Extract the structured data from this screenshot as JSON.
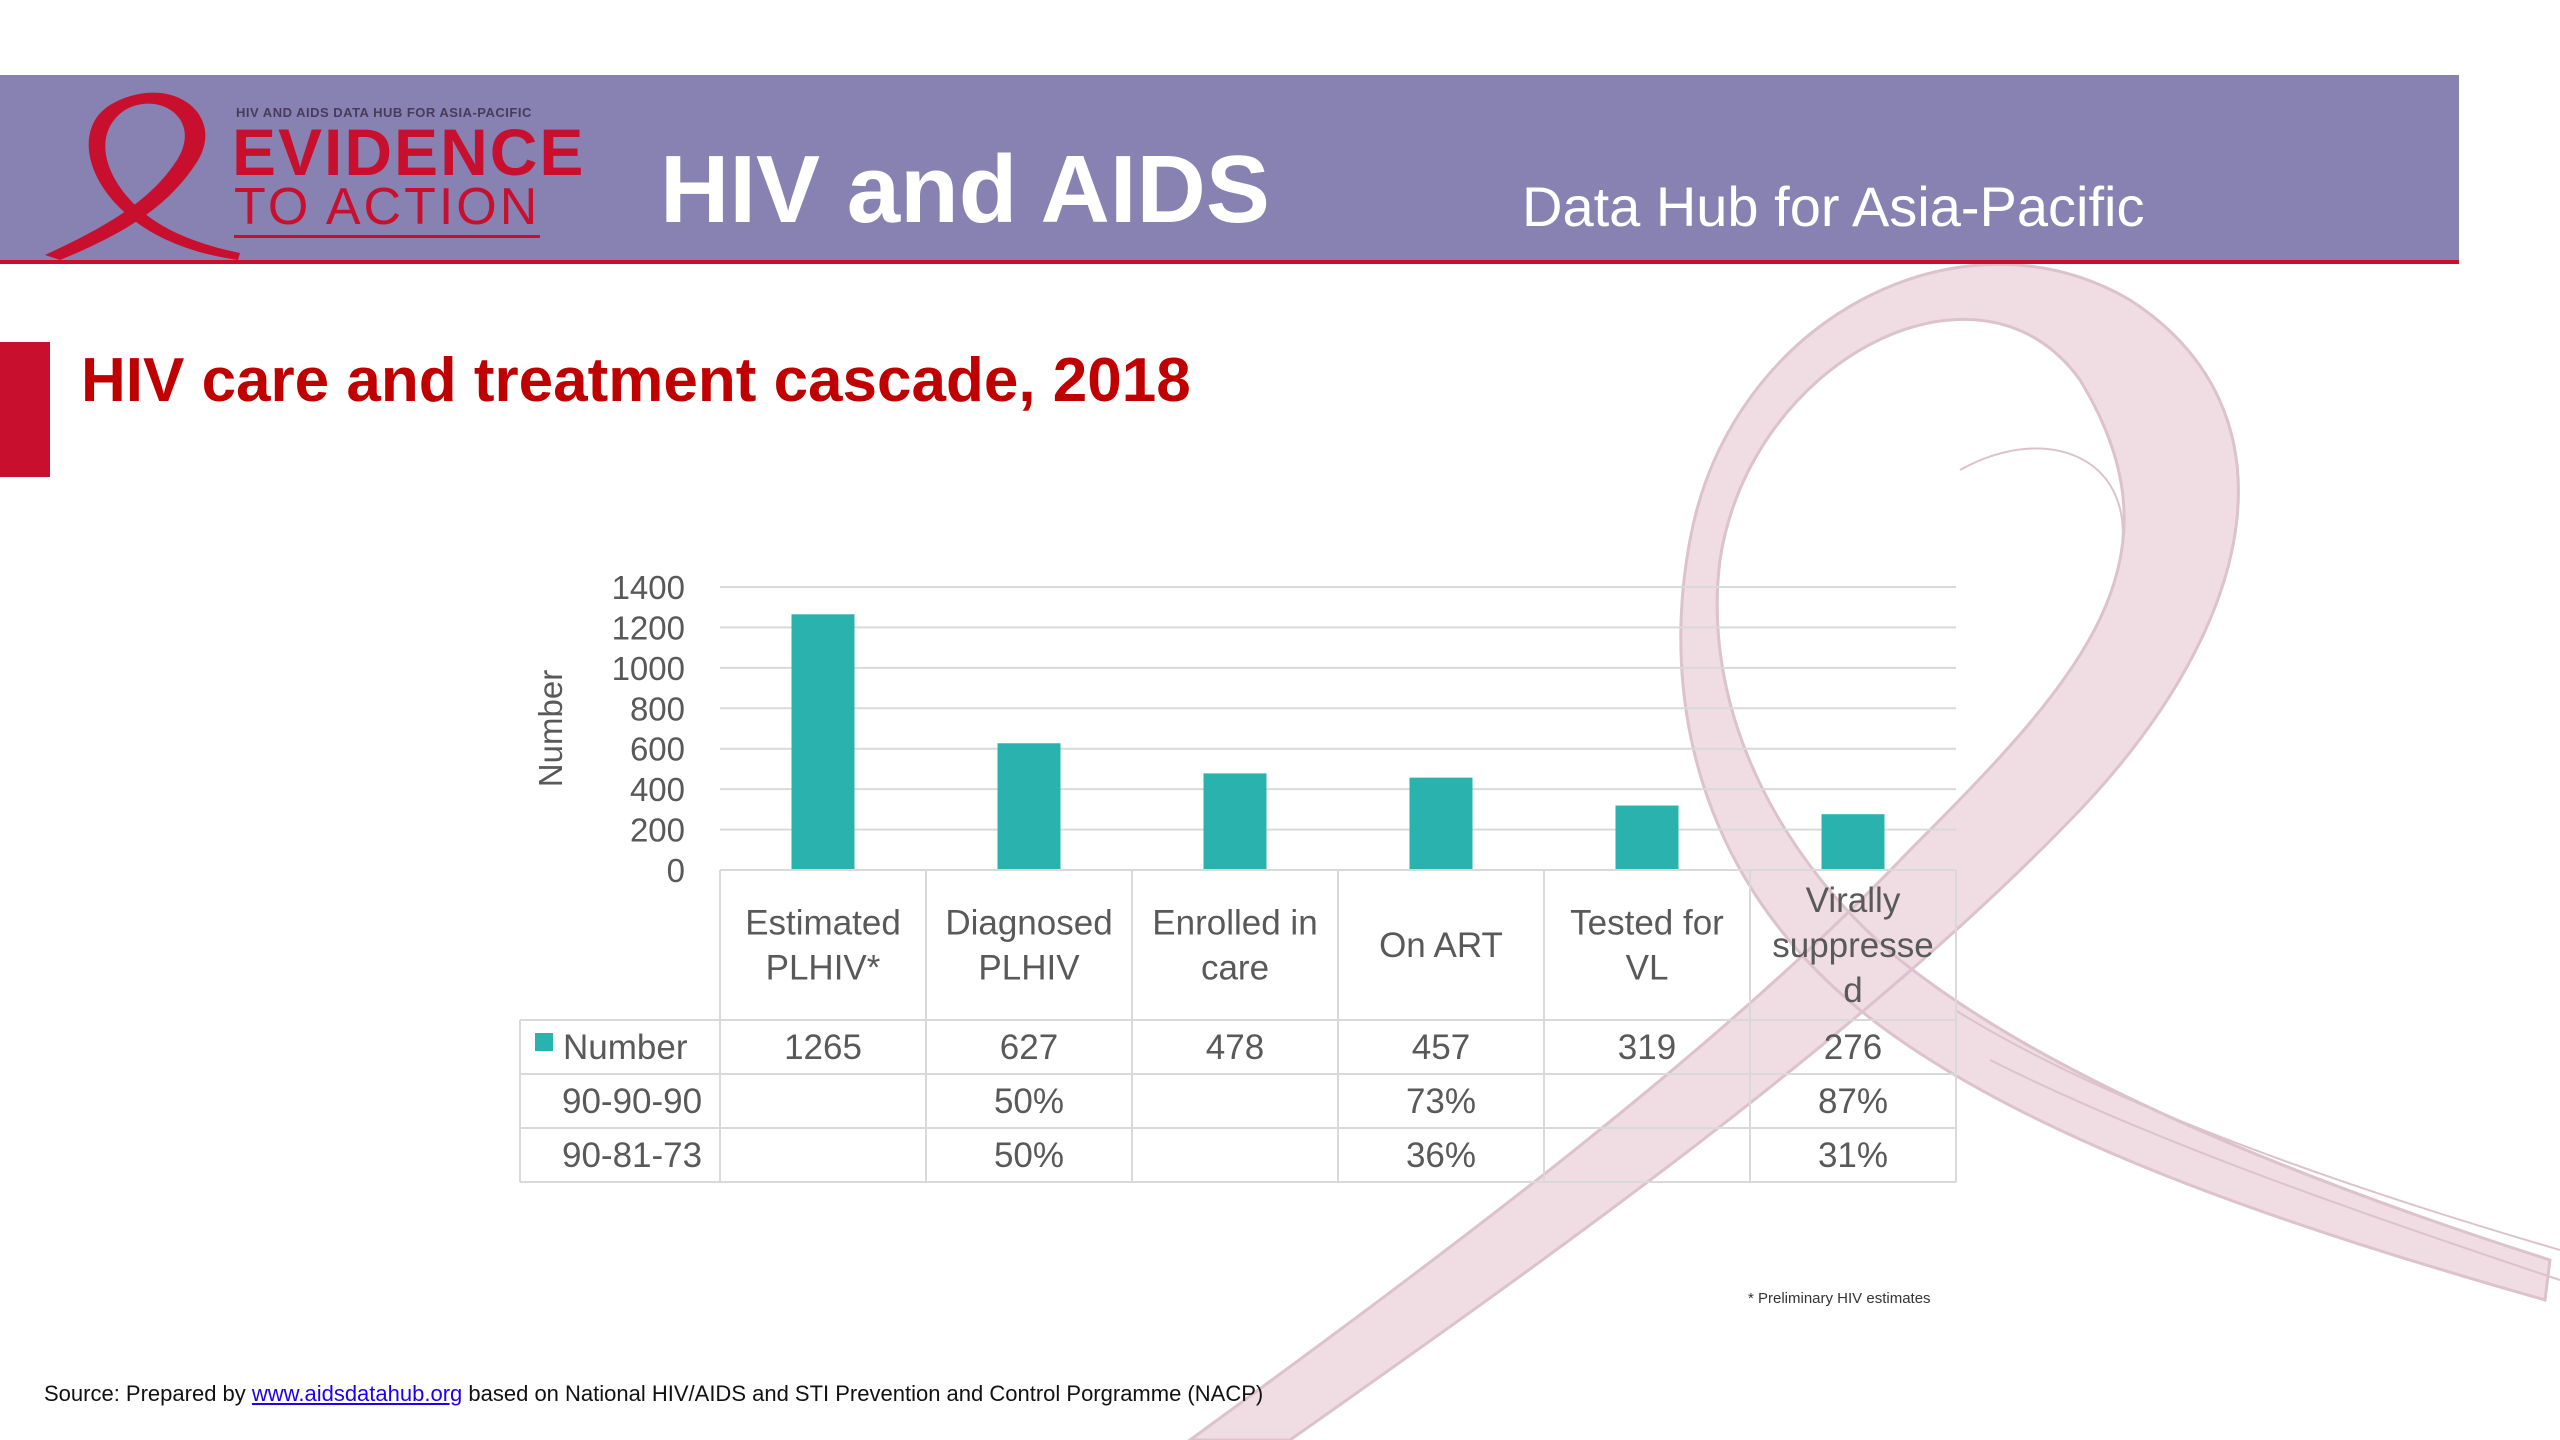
{
  "header": {
    "logo_small_text": "HIV AND AIDS DATA HUB FOR ASIA-PACIFIC",
    "logo_line1": "EVIDENCE",
    "logo_line2": "TO ACTION",
    "title": "HIV and AIDS",
    "subtitle": "Data Hub for Asia-Pacific"
  },
  "page": {
    "title": "HIV care and treatment cascade, 2018",
    "footnote": "* Preliminary HIV estimates",
    "source_prefix": "Source: Prepared by",
    "source_link": "www.aidsdatahub.org",
    "source_suffix": "based on National HIV/AIDS and STI Prevention and Control Porgramme (NACP)"
  },
  "colors": {
    "header_bg": "#8782b2",
    "brand_red": "#c8102e",
    "bar": "#2ab3ae",
    "ribbon_bg": "#efdde3"
  },
  "chart_data": {
    "type": "bar",
    "title": "",
    "xlabel": "",
    "ylabel": "Number",
    "ylim": [
      0,
      1400
    ],
    "yticks": [
      0,
      200,
      400,
      600,
      800,
      1000,
      1200,
      1400
    ],
    "grid": true,
    "categories": [
      [
        "Estimated",
        "PLHIV*"
      ],
      [
        "Diagnosed",
        "PLHIV"
      ],
      [
        "Enrolled in",
        "care"
      ],
      [
        "On ART"
      ],
      [
        "Tested for",
        "VL"
      ],
      [
        "Virally",
        "suppresse",
        "d"
      ]
    ],
    "series": [
      {
        "name": "Number",
        "values": [
          1265,
          627,
          478,
          457,
          319,
          276
        ]
      }
    ],
    "table_rows": [
      {
        "label": "Number",
        "values": [
          "1265",
          "627",
          "478",
          "457",
          "319",
          "276"
        ]
      },
      {
        "label": "90-90-90",
        "values": [
          "",
          "50%",
          "",
          "73%",
          "",
          "87%"
        ]
      },
      {
        "label": "90-81-73",
        "values": [
          "",
          "50%",
          "",
          "36%",
          "",
          "31%"
        ]
      }
    ]
  }
}
